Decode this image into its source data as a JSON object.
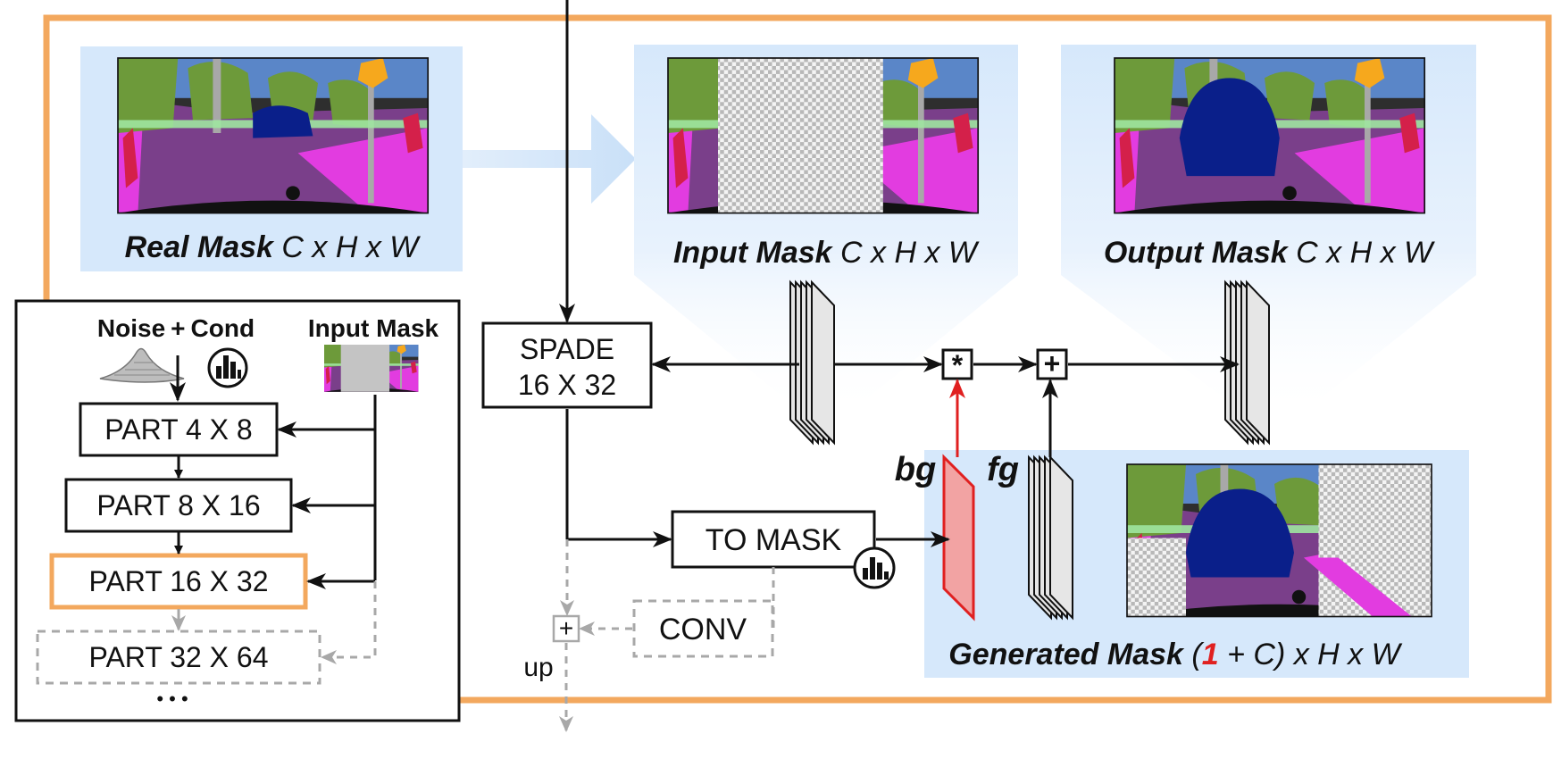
{
  "real_mask": {
    "title": "Real Mask",
    "dims": " C x H x W"
  },
  "input_mask": {
    "title": "Input Mask",
    "dims": " C x H x W"
  },
  "output_mask": {
    "title": "Output Mask",
    "dims": " C x H x W"
  },
  "generated_mask": {
    "title": "Generated Mask",
    "dims_open": " (",
    "dims_one": "1",
    "dims_close": " + C) x H x W"
  },
  "spade": {
    "line1": "SPADE",
    "line2": "16 X 32"
  },
  "to_mask": {
    "label": "TO MASK"
  },
  "conv": {
    "label": "CONV"
  },
  "up": {
    "label": "up"
  },
  "bg": {
    "label": "bg"
  },
  "fg": {
    "label": "fg"
  },
  "multiply_op": {
    "symbol": "*"
  },
  "add_op": {
    "symbol": "+"
  },
  "add_op_small": {
    "symbol": "+"
  },
  "inset": {
    "noise": "Noise",
    "plus": "+",
    "cond": "Cond",
    "input_mask": "Input Mask",
    "part1": "PART 4 X 8",
    "part2": "PART 8 X 16",
    "part3": "PART 16 X 32",
    "part4": "PART 32 X 64",
    "ellipsis": "• • •"
  },
  "colors": {
    "orange": "#f3a85e",
    "light_blue": "#d6e8fb",
    "red": "#e02020",
    "grey": "#a8a8a8",
    "navy": "#0a1f8a",
    "magenta": "#e23ce0",
    "purple": "#7a3f8a",
    "green": "#6d9a3a",
    "lime": "#9ee6a0",
    "dark": "#2e2e2e"
  }
}
